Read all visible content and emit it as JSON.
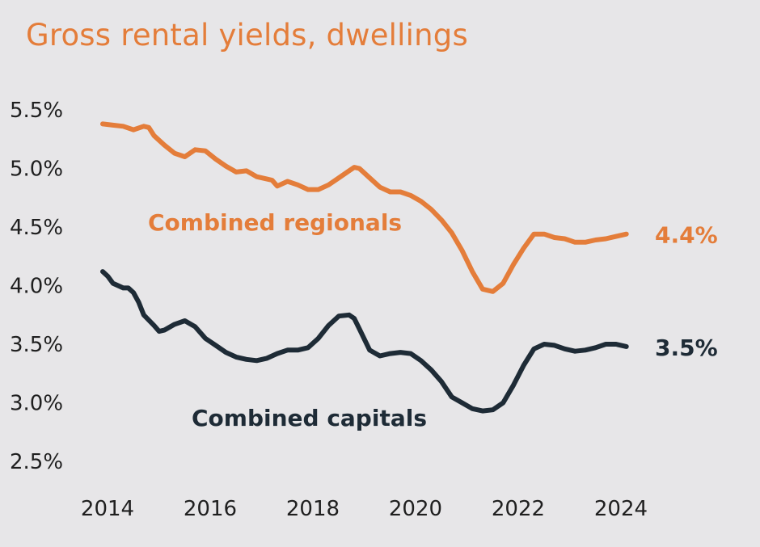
{
  "chart_data": {
    "type": "line",
    "title": "Gross rental yields, dwellings",
    "xlabel": "",
    "ylabel": "",
    "xlim": [
      2014.0,
      2024.3
    ],
    "ylim": [
      2.5,
      5.5
    ],
    "x_ticks": [
      "2014",
      "2016",
      "2018",
      "2020",
      "2022",
      "2024"
    ],
    "x_tick_values": [
      2014,
      2016,
      2018,
      2020,
      2022,
      2024
    ],
    "y_ticks": [
      "2.5%",
      "3.0%",
      "3.5%",
      "4.0%",
      "4.5%",
      "5.0%",
      "5.5%"
    ],
    "y_tick_values": [
      2.5,
      3.0,
      3.5,
      4.0,
      4.5,
      5.0,
      5.5
    ],
    "grid": false,
    "colors": {
      "title": "#e47d3a",
      "regionals": "#e47d3a",
      "capitals": "#1e2b36",
      "background": "#e7e6e8"
    },
    "series": [
      {
        "name": "Combined regionals",
        "end_label": "4.4%",
        "x": [
          2014.0,
          2014.2,
          2014.4,
          2014.6,
          2014.8,
          2014.9,
          2015.0,
          2015.2,
          2015.4,
          2015.6,
          2015.8,
          2016.0,
          2016.2,
          2016.4,
          2016.6,
          2016.8,
          2017.0,
          2017.2,
          2017.3,
          2017.4,
          2017.6,
          2017.8,
          2018.0,
          2018.2,
          2018.4,
          2018.6,
          2018.8,
          2018.9,
          2019.0,
          2019.2,
          2019.4,
          2019.6,
          2019.8,
          2020.0,
          2020.2,
          2020.4,
          2020.6,
          2020.8,
          2021.0,
          2021.2,
          2021.4,
          2021.6,
          2021.8,
          2022.0,
          2022.2,
          2022.4,
          2022.6,
          2022.8,
          2023.0,
          2023.2,
          2023.4,
          2023.6,
          2023.8,
          2024.0,
          2024.2
        ],
        "y": [
          5.38,
          5.37,
          5.36,
          5.33,
          5.36,
          5.35,
          5.28,
          5.2,
          5.13,
          5.1,
          5.16,
          5.15,
          5.08,
          5.02,
          4.97,
          4.98,
          4.93,
          4.91,
          4.9,
          4.85,
          4.89,
          4.86,
          4.82,
          4.82,
          4.86,
          4.92,
          4.98,
          5.01,
          5.0,
          4.92,
          4.84,
          4.8,
          4.8,
          4.77,
          4.72,
          4.65,
          4.56,
          4.45,
          4.3,
          4.12,
          3.97,
          3.95,
          4.02,
          4.18,
          4.32,
          4.44,
          4.44,
          4.41,
          4.4,
          4.37,
          4.37,
          4.39,
          4.4,
          4.42,
          4.44
        ]
      },
      {
        "name": "Combined capitals",
        "end_label": "3.5%",
        "x": [
          2014.0,
          2014.1,
          2014.2,
          2014.4,
          2014.5,
          2014.6,
          2014.7,
          2014.8,
          2015.0,
          2015.1,
          2015.2,
          2015.4,
          2015.6,
          2015.8,
          2016.0,
          2016.2,
          2016.4,
          2016.6,
          2016.8,
          2017.0,
          2017.2,
          2017.4,
          2017.6,
          2017.8,
          2018.0,
          2018.2,
          2018.4,
          2018.6,
          2018.8,
          2018.9,
          2019.0,
          2019.2,
          2019.4,
          2019.6,
          2019.8,
          2020.0,
          2020.2,
          2020.4,
          2020.6,
          2020.8,
          2021.0,
          2021.2,
          2021.4,
          2021.6,
          2021.8,
          2022.0,
          2022.2,
          2022.4,
          2022.6,
          2022.8,
          2023.0,
          2023.2,
          2023.4,
          2023.6,
          2023.8,
          2024.0,
          2024.2
        ],
        "y": [
          4.12,
          4.08,
          4.02,
          3.98,
          3.98,
          3.94,
          3.86,
          3.75,
          3.66,
          3.61,
          3.62,
          3.67,
          3.7,
          3.65,
          3.55,
          3.49,
          3.43,
          3.39,
          3.37,
          3.36,
          3.38,
          3.42,
          3.45,
          3.45,
          3.47,
          3.55,
          3.66,
          3.74,
          3.75,
          3.72,
          3.63,
          3.45,
          3.4,
          3.42,
          3.43,
          3.42,
          3.36,
          3.28,
          3.18,
          3.05,
          3.0,
          2.95,
          2.93,
          2.94,
          3.0,
          3.15,
          3.32,
          3.46,
          3.5,
          3.49,
          3.46,
          3.44,
          3.45,
          3.47,
          3.5,
          3.5,
          3.48
        ]
      }
    ]
  }
}
